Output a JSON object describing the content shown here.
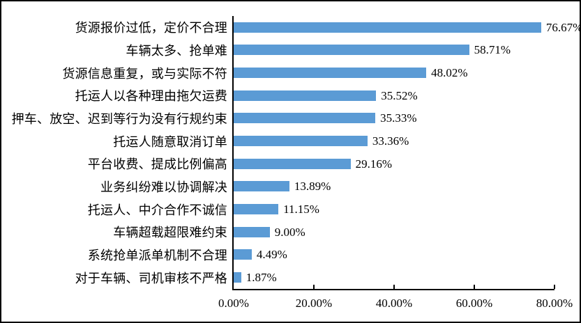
{
  "chart_data": {
    "type": "bar",
    "orientation": "horizontal",
    "title": "",
    "xlabel": "",
    "ylabel": "",
    "grid": false,
    "legend": "none",
    "bar_color": "#5B9BD5",
    "axis_color": "#000000",
    "categories": [
      "货源报价过低，定价不合理",
      "车辆太多、抢单难",
      "货源信息重复，或与实际不符",
      "托运人以各种理由拖欠运费",
      "押车、放空、迟到等行为没有行规约束",
      "托运人随意取消订单",
      "平台收费、提成比例偏高",
      "业务纠纷难以协调解决",
      "托运人、中介合作不诚信",
      "车辆超载超限难约束",
      "系统抢单派单机制不合理",
      "对于车辆、司机审核不严格"
    ],
    "values": [
      76.67,
      58.71,
      48.02,
      35.52,
      35.33,
      33.36,
      29.16,
      13.89,
      11.15,
      9.0,
      4.49,
      1.87
    ],
    "value_labels": [
      "76.67%",
      "58.71%",
      "48.02%",
      "35.52%",
      "35.33%",
      "33.36%",
      "29.16%",
      "13.89%",
      "11.15%",
      "9.00%",
      "4.49%",
      "1.87%"
    ],
    "x_axis": {
      "min": 0,
      "max": 80,
      "tick_labels": [
        "0.00%",
        "20.00%",
        "40.00%",
        "60.00%",
        "80.00%"
      ],
      "tick_values": [
        0,
        20,
        40,
        60,
        80
      ]
    }
  }
}
